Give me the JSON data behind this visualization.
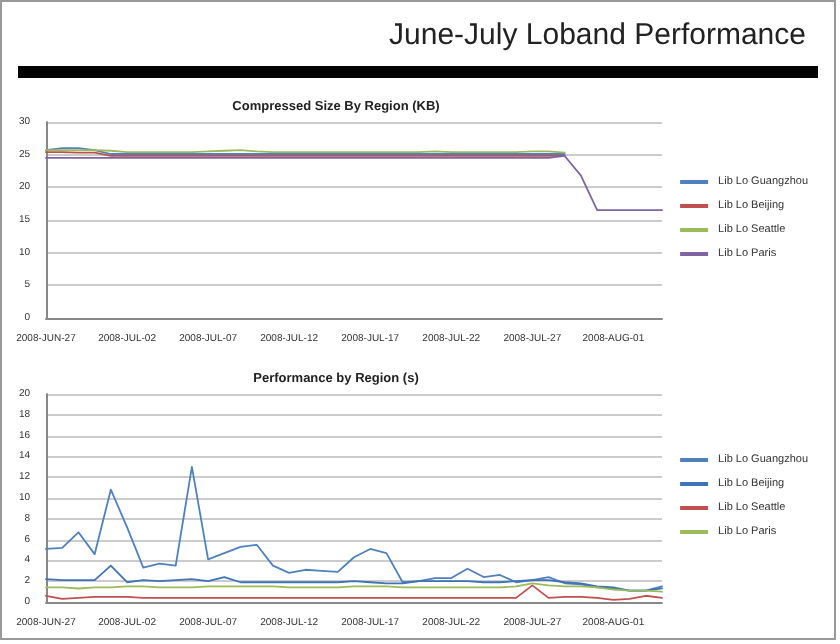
{
  "chart_data": [
    {
      "type": "line",
      "title": "Compressed Size By Region (KB)",
      "annotations": [
        "June-July Loband Performance"
      ],
      "categories": [
        "2008-JUN-27",
        null,
        null,
        null,
        null,
        "2008-JUL-02",
        null,
        null,
        null,
        null,
        "2008-JUL-07",
        null,
        null,
        null,
        null,
        "2008-JUL-12",
        null,
        null,
        null,
        null,
        "2008-JUL-17",
        null,
        null,
        null,
        null,
        "2008-JUL-22",
        null,
        null,
        null,
        null,
        "2008-JUL-27",
        null,
        null,
        null,
        null,
        "2008-AUG-01",
        null,
        null,
        null
      ],
      "series": [
        {
          "name": "Lib Lo Guangzhou",
          "color": "#4f81bd",
          "values": [
            25.7,
            26.0,
            26.0,
            25.7,
            25.1,
            25.1,
            25.1,
            25.1,
            25.1,
            25.1,
            25.1,
            25.1,
            25.1,
            25.1,
            25.1,
            25.1,
            25.1,
            25.1,
            25.1,
            25.1,
            25.1,
            25.1,
            25.1,
            25.1,
            25.1,
            25.1,
            25.1,
            25.1,
            25.1,
            25.1,
            25.1,
            25.1,
            25.1,
            null,
            null,
            null,
            null,
            null,
            null
          ]
        },
        {
          "name": "Lib Lo Beijing",
          "color": "#c0504d",
          "values": [
            25.4,
            25.4,
            25.3,
            25.3,
            24.8,
            24.8,
            24.8,
            24.8,
            24.8,
            24.8,
            24.8,
            24.8,
            24.8,
            24.8,
            24.8,
            24.8,
            24.8,
            24.8,
            24.8,
            24.8,
            24.8,
            24.8,
            24.8,
            24.8,
            24.8,
            24.8,
            24.8,
            24.8,
            24.8,
            24.8,
            24.8,
            24.8,
            24.8,
            null,
            null,
            null,
            null,
            null,
            null
          ]
        },
        {
          "name": "Lib Lo Seattle",
          "color": "#9bbb59",
          "values": [
            25.7,
            25.7,
            25.7,
            25.7,
            25.6,
            25.4,
            25.4,
            25.4,
            25.4,
            25.4,
            25.5,
            25.6,
            25.7,
            25.5,
            25.4,
            25.4,
            25.4,
            25.4,
            25.4,
            25.4,
            25.4,
            25.4,
            25.4,
            25.4,
            25.5,
            25.4,
            25.4,
            25.4,
            25.4,
            25.4,
            25.5,
            25.5,
            25.3,
            null,
            null,
            null,
            null,
            null,
            null
          ]
        },
        {
          "name": "Lib Lo Paris",
          "color": "#8064a2",
          "values": [
            24.5,
            24.5,
            24.5,
            24.5,
            24.5,
            24.5,
            24.5,
            24.5,
            24.5,
            24.5,
            24.5,
            24.5,
            24.5,
            24.5,
            24.5,
            24.5,
            24.5,
            24.5,
            24.5,
            24.5,
            24.5,
            24.5,
            24.5,
            24.5,
            24.5,
            24.5,
            24.5,
            24.5,
            24.5,
            24.5,
            24.5,
            24.5,
            24.8,
            21.8,
            16.5,
            16.5,
            16.5,
            16.5,
            16.5
          ]
        }
      ],
      "ylim": [
        0,
        30
      ],
      "yticks": [
        0,
        5,
        10,
        15,
        20,
        25,
        30
      ],
      "grid": "y",
      "legend": "right",
      "marker": "none"
    },
    {
      "type": "line",
      "title": "Performance by Region (s)",
      "categories": [
        "2008-JUN-27",
        null,
        null,
        null,
        null,
        "2008-JUL-02",
        null,
        null,
        null,
        null,
        "2008-JUL-07",
        null,
        null,
        null,
        null,
        "2008-JUL-12",
        null,
        null,
        null,
        null,
        "2008-JUL-17",
        null,
        null,
        null,
        null,
        "2008-JUL-22",
        null,
        null,
        null,
        null,
        "2008-JUL-27",
        null,
        null,
        null,
        null,
        "2008-AUG-01",
        null,
        null,
        null
      ],
      "series": [
        {
          "name": "Lib Lo Guangzhou",
          "color": "#4f81bd",
          "values": [
            5.1,
            5.2,
            6.7,
            4.6,
            10.8,
            7.2,
            3.3,
            3.7,
            3.5,
            13.0,
            4.1,
            4.7,
            5.3,
            5.5,
            3.5,
            2.8,
            3.1,
            3.0,
            2.9,
            4.3,
            5.1,
            4.7,
            1.9,
            2.0,
            2.3,
            2.3,
            3.2,
            2.4,
            2.6,
            1.9,
            2.1,
            2.4,
            1.8,
            1.7,
            1.4,
            1.3,
            1.1,
            1.1,
            1.5
          ]
        },
        {
          "name": "Lib Lo Beijing",
          "color": "#3f73b8",
          "values": [
            2.2,
            2.1,
            2.1,
            2.1,
            3.5,
            1.9,
            2.1,
            2.0,
            2.1,
            2.2,
            2.0,
            2.4,
            1.9,
            1.9,
            1.9,
            1.9,
            1.9,
            1.9,
            1.9,
            2.0,
            1.9,
            1.8,
            1.8,
            2.0,
            2.0,
            2.0,
            2.0,
            1.9,
            1.9,
            2.0,
            2.1,
            2.1,
            1.9,
            1.8,
            1.5,
            1.4,
            1.1,
            1.1,
            1.3
          ]
        },
        {
          "name": "Lib Lo Seattle",
          "color": "#c0504d",
          "values": [
            0.6,
            0.3,
            0.4,
            0.5,
            0.5,
            0.5,
            0.4,
            0.4,
            0.4,
            0.4,
            0.4,
            0.4,
            0.4,
            0.4,
            0.4,
            0.4,
            0.4,
            0.4,
            0.4,
            0.4,
            0.4,
            0.4,
            0.4,
            0.4,
            0.4,
            0.4,
            0.4,
            0.4,
            0.4,
            0.4,
            1.6,
            0.4,
            0.5,
            0.5,
            0.4,
            0.2,
            0.3,
            0.6,
            0.4
          ]
        },
        {
          "name": "Lib Lo Paris",
          "color": "#9bbb59",
          "values": [
            1.4,
            1.4,
            1.3,
            1.4,
            1.4,
            1.5,
            1.5,
            1.4,
            1.4,
            1.4,
            1.5,
            1.5,
            1.5,
            1.5,
            1.5,
            1.4,
            1.4,
            1.4,
            1.4,
            1.5,
            1.5,
            1.5,
            1.4,
            1.4,
            1.4,
            1.4,
            1.4,
            1.4,
            1.4,
            1.5,
            1.8,
            1.6,
            1.5,
            1.5,
            1.4,
            1.2,
            1.1,
            1.1,
            1.0
          ]
        }
      ],
      "ylim": [
        0,
        20
      ],
      "yticks": [
        0,
        2,
        4,
        6,
        8,
        10,
        12,
        14,
        16,
        18,
        20
      ],
      "grid": "y",
      "legend": "right",
      "marker": "none"
    }
  ]
}
